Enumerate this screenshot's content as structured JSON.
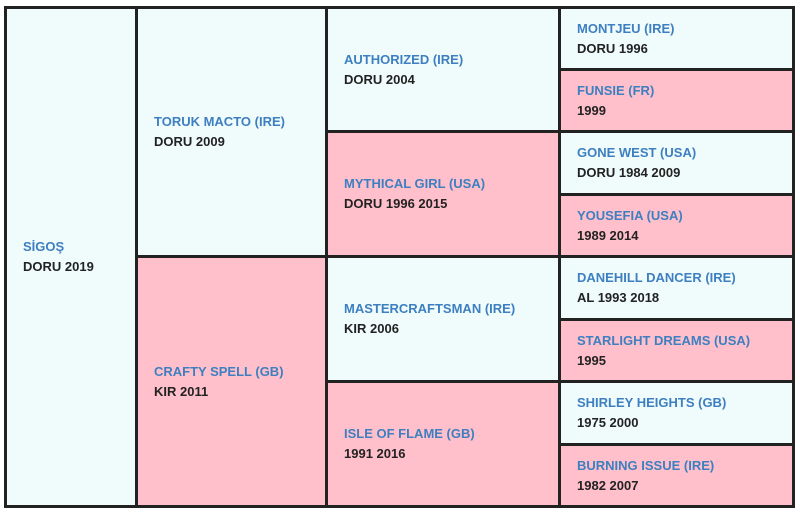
{
  "colors": {
    "male_bg": "#f0fcfc",
    "female_bg": "#ffc0cb",
    "name_text": "#3d7fc0",
    "info_text": "#222222",
    "border": "#222222"
  },
  "horse": {
    "name": "SİGOŞ",
    "info": "DORU 2019"
  },
  "parents": {
    "sire": {
      "name": "TORUK MACTO (IRE)",
      "info": "DORU 2009"
    },
    "dam": {
      "name": "CRAFTY SPELL (GB)",
      "info": "KIR 2011"
    }
  },
  "grandparents": [
    {
      "name": "AUTHORIZED (IRE)",
      "info": "DORU 2004"
    },
    {
      "name": "MYTHICAL GIRL (USA)",
      "info": "DORU 1996 2015"
    },
    {
      "name": "MASTERCRAFTSMAN (IRE)",
      "info": "KIR 2006"
    },
    {
      "name": "ISLE OF FLAME (GB)",
      "info": "1991 2016"
    }
  ],
  "great_grandparents": [
    {
      "name": "MONTJEU (IRE)",
      "info": "DORU 1996"
    },
    {
      "name": "FUNSIE (FR)",
      "info": "1999"
    },
    {
      "name": "GONE WEST (USA)",
      "info": "DORU 1984 2009"
    },
    {
      "name": "YOUSEFIA (USA)",
      "info": "1989 2014"
    },
    {
      "name": "DANEHILL DANCER (IRE)",
      "info": "AL 1993 2018"
    },
    {
      "name": "STARLIGHT DREAMS (USA)",
      "info": "1995"
    },
    {
      "name": "SHIRLEY HEIGHTS (GB)",
      "info": "1975 2000"
    },
    {
      "name": "BURNING ISSUE (IRE)",
      "info": "1982 2007"
    }
  ]
}
